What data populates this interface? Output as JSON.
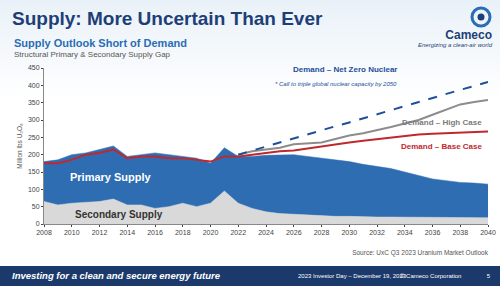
{
  "header": {
    "title": "Supply: More Uncertain Than Ever",
    "logo": "Cameco",
    "tagline": "Energizing a clean-air world"
  },
  "footer": {
    "tagline": "Investing for a clean and secure energy future",
    "event": "2023 Investor Day – December 19, 2023",
    "copyright": "© Cameco Corporation",
    "page": "5"
  },
  "chart_data": {
    "type": "area",
    "title": "Supply Outlook Short of Demand",
    "subtitle": "Structural Primary & Secondary Supply Gap",
    "y_label": "Million lbs U₃O₈",
    "source": "Source: UxC Q3 2023 Uranium Market Outlook",
    "annotations": [
      "* Call to triple global nuclear capacity by 2050"
    ],
    "x": [
      2008,
      2009,
      2010,
      2011,
      2012,
      2013,
      2014,
      2015,
      2016,
      2017,
      2018,
      2019,
      2020,
      2021,
      2022,
      2023,
      2024,
      2025,
      2026,
      2027,
      2028,
      2029,
      2030,
      2031,
      2032,
      2033,
      2034,
      2035,
      2036,
      2037,
      2038,
      2039,
      2040
    ],
    "xlim": [
      2008,
      2040
    ],
    "xticks": [
      2008,
      2010,
      2012,
      2014,
      2016,
      2018,
      2020,
      2022,
      2024,
      2026,
      2028,
      2030,
      2032,
      2034,
      2036,
      2038,
      2040
    ],
    "ylim": [
      0,
      450
    ],
    "yticks": [
      0,
      50,
      100,
      150,
      200,
      250,
      300,
      350,
      400,
      450
    ],
    "grid": false,
    "stacked": true,
    "series": [
      {
        "name": "Secondary Supply",
        "type": "area",
        "color": "#d9d9d9",
        "values": [
          65,
          55,
          60,
          62,
          65,
          72,
          55,
          55,
          45,
          50,
          60,
          50,
          60,
          95,
          60,
          45,
          35,
          30,
          28,
          25,
          25,
          22,
          22,
          20,
          20,
          20,
          20,
          20,
          18,
          18,
          18,
          18,
          18
        ]
      },
      {
        "name": "Primary Supply",
        "type": "area",
        "color": "#2f6db3",
        "values": [
          115,
          130,
          140,
          143,
          150,
          153,
          140,
          145,
          160,
          150,
          135,
          140,
          115,
          125,
          135,
          150,
          163,
          170,
          172,
          170,
          165,
          163,
          158,
          152,
          145,
          140,
          130,
          120,
          112,
          107,
          102,
          100,
          97
        ]
      },
      {
        "name": "Demand – Base Case",
        "type": "line",
        "color": "#c0282d",
        "line_style": "solid",
        "values": [
          175,
          175,
          185,
          200,
          205,
          215,
          190,
          195,
          195,
          190,
          190,
          185,
          180,
          195,
          195,
          200,
          205,
          210,
          212,
          218,
          225,
          230,
          235,
          240,
          245,
          250,
          255,
          258,
          260,
          262,
          264,
          265,
          267
        ]
      },
      {
        "name": "Demand – High Case",
        "type": "line",
        "color": "#8c8c8c",
        "line_style": "solid",
        "values": [
          null,
          null,
          null,
          null,
          null,
          null,
          null,
          null,
          null,
          null,
          null,
          null,
          null,
          null,
          200,
          210,
          215,
          220,
          230,
          232,
          235,
          245,
          255,
          262,
          270,
          280,
          290,
          300,
          315,
          330,
          345,
          352,
          358
        ]
      },
      {
        "name": "Demand – Net Zero Nuclear",
        "type": "line",
        "color": "#1f4e9a",
        "line_style": "dashed",
        "values": [
          null,
          null,
          null,
          null,
          null,
          null,
          null,
          null,
          null,
          null,
          null,
          null,
          null,
          null,
          200,
          212,
          223,
          235,
          247,
          258,
          270,
          282,
          293,
          305,
          317,
          328,
          340,
          352,
          363,
          375,
          387,
          398,
          410
        ]
      }
    ]
  }
}
